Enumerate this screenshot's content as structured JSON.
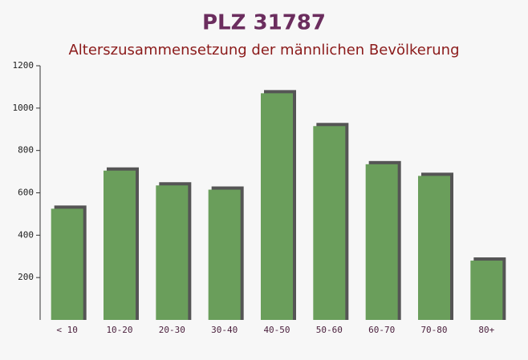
{
  "chart_data": {
    "type": "bar",
    "title": "PLZ 31787",
    "subtitle": "Alterszusammensetzung der männlichen Bevölkerung",
    "categories": [
      "< 10",
      "10-20",
      "20-30",
      "30-40",
      "40-50",
      "50-60",
      "60-70",
      "70-80",
      "80+"
    ],
    "values": [
      525,
      705,
      635,
      615,
      1070,
      915,
      735,
      680,
      280
    ],
    "color": "#6a9e5b",
    "ylim": [
      0,
      1200
    ],
    "yticks": [
      200,
      400,
      600,
      800,
      1000,
      1200
    ],
    "grid": false
  }
}
